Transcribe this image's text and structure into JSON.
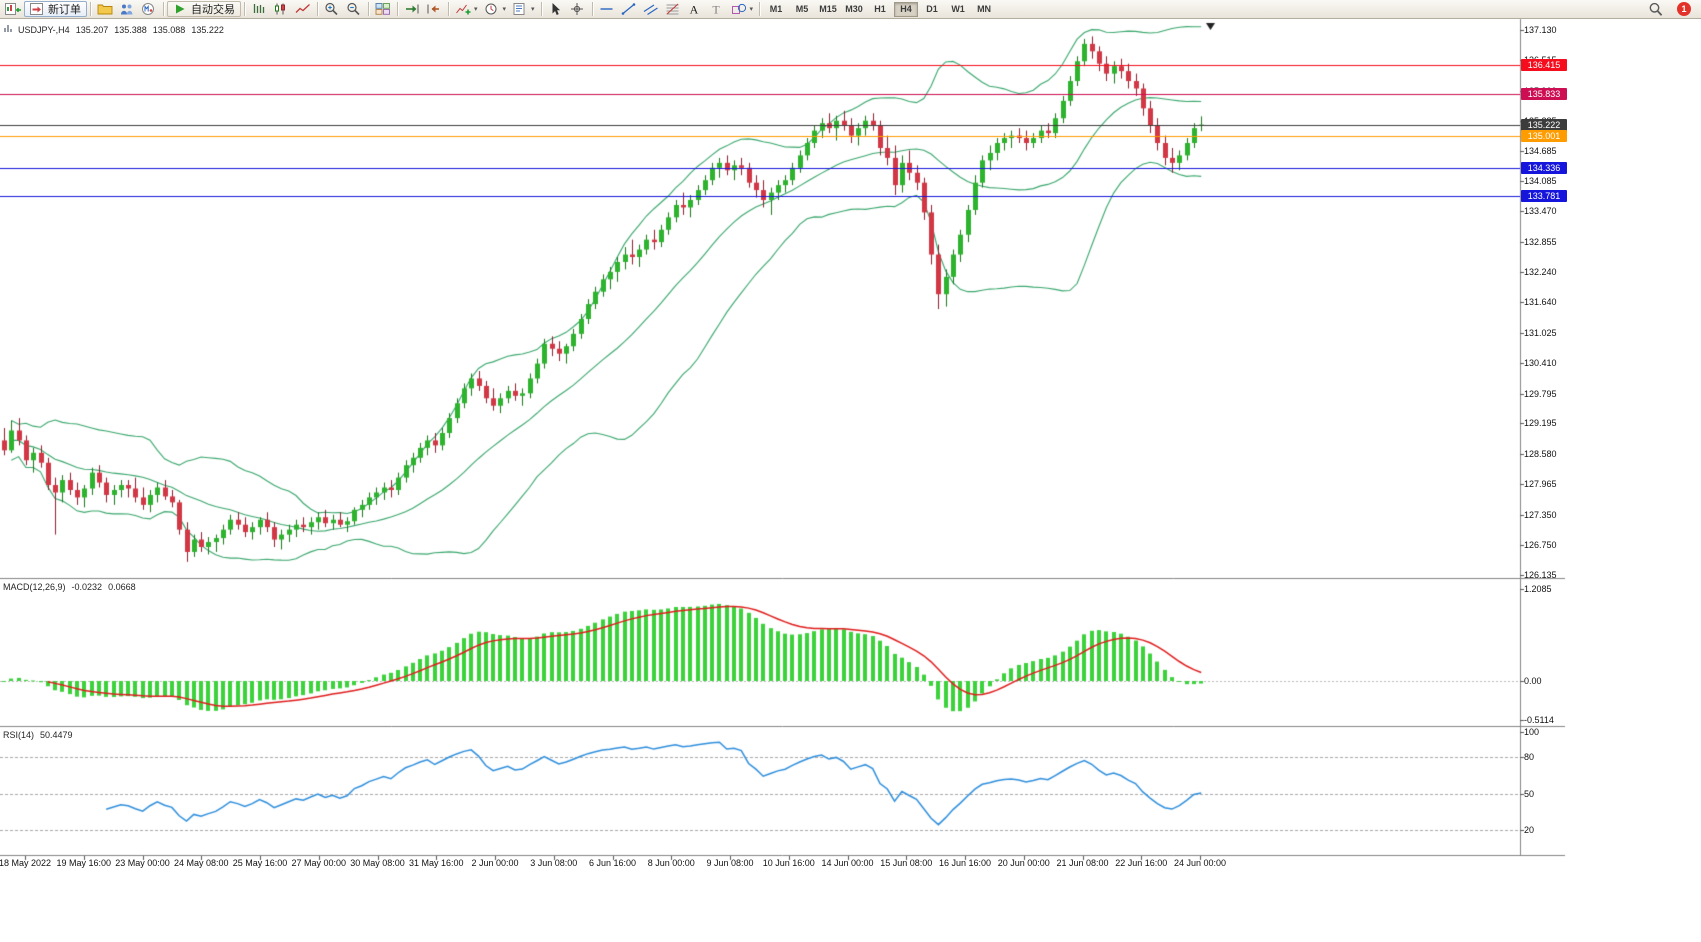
{
  "toolbar": {
    "buttons": [
      {
        "name": "new-chart-button",
        "icon": "new-chart-icon"
      },
      {
        "name": "new-order-button",
        "icon": "new-order-icon",
        "label": "新订单"
      },
      {
        "divider": true
      },
      {
        "name": "profiles-button",
        "icon": "profiles-icon"
      },
      {
        "name": "community-button",
        "icon": "community-icon"
      },
      {
        "name": "mql5-button",
        "icon": "mql5-icon"
      },
      {
        "divider": true
      },
      {
        "name": "autotrading-button",
        "icon": "autotrading-icon",
        "label": "自动交易"
      },
      {
        "divider": true
      },
      {
        "name": "bars-button",
        "icon": "bars-icon"
      },
      {
        "name": "candlesticks-button",
        "icon": "candles-icon"
      },
      {
        "name": "line-chart-button",
        "icon": "line-icon"
      },
      {
        "divider": true
      },
      {
        "name": "zoom-in-button",
        "icon": "zoom-in-icon"
      },
      {
        "name": "zoom-out-button",
        "icon": "zoom-out-icon"
      },
      {
        "divider": true
      },
      {
        "name": "tile-windows-button",
        "icon": "tile-icon"
      },
      {
        "divider": true
      },
      {
        "name": "auto-scroll-button",
        "icon": "autoscroll-icon"
      },
      {
        "name": "chart-shift-button",
        "icon": "shift-icon"
      },
      {
        "divider": true
      },
      {
        "name": "indicators-button",
        "icon": "indicators-icon",
        "dropdown": true
      },
      {
        "name": "periods-button",
        "icon": "periods-icon",
        "dropdown": true
      },
      {
        "name": "templates-button",
        "icon": "templates-icon",
        "dropdown": true
      },
      {
        "divider": true
      },
      {
        "name": "cursor-button",
        "icon": "cursor-icon"
      },
      {
        "name": "crosshair-button",
        "icon": "crosshair-icon"
      },
      {
        "divider": true
      },
      {
        "name": "horizontal-line-button",
        "icon": "hline-icon"
      },
      {
        "name": "trendline-button",
        "icon": "trendline-icon"
      },
      {
        "name": "channel-button",
        "icon": "channel-icon"
      },
      {
        "name": "fibonacci-button",
        "icon": "fibo-icon"
      },
      {
        "name": "text-button",
        "icon": "text-icon"
      },
      {
        "name": "text-label-button",
        "icon": "label-icon"
      },
      {
        "name": "shapes-button",
        "icon": "shapes-icon",
        "dropdown": true
      },
      {
        "divider": true
      }
    ],
    "timeframes": [
      "M1",
      "M5",
      "M15",
      "M30",
      "H1",
      "H4",
      "D1",
      "W1",
      "MN"
    ],
    "active_timeframe": "H4",
    "notification_count": "1"
  },
  "chart": {
    "symbol": "USDJPY-,H4",
    "open": "135.207",
    "high": "135.388",
    "low": "135.088",
    "close": "135.222",
    "macd_label": "MACD(12,26,9)",
    "macd_value": "-0.0232",
    "macd_signal_value": "0.0668",
    "rsi_label": "RSI(14)",
    "rsi_value": "50.4479"
  },
  "chart_data": {
    "type": "candlestick",
    "symbol": "USDJPY",
    "timeframe": "H4",
    "price_axis": {
      "min": 126.135,
      "max": 137.13,
      "labels": [
        "137.130",
        "136.515",
        "135.900",
        "135.285",
        "134.685",
        "134.085",
        "133.470",
        "132.855",
        "132.240",
        "131.640",
        "131.025",
        "130.410",
        "129.795",
        "129.195",
        "128.580",
        "127.965",
        "127.350",
        "126.750",
        "126.135"
      ]
    },
    "time_labels": [
      "18 May 2022",
      "19 May 16:00",
      "23 May 00:00",
      "24 May 08:00",
      "25 May 16:00",
      "27 May 00:00",
      "30 May 08:00",
      "31 May 16:00",
      "2 Jun 00:00",
      "3 Jun 08:00",
      "6 Jun 16:00",
      "8 Jun 00:00",
      "9 Jun 08:00",
      "10 Jun 16:00",
      "14 Jun 00:00",
      "15 Jun 08:00",
      "16 Jun 16:00",
      "20 Jun 00:00",
      "21 Jun 08:00",
      "22 Jun 16:00",
      "24 Jun 00:00"
    ],
    "hlines": [
      {
        "price": 136.415,
        "label": "136.415",
        "color": "#f50d1e"
      },
      {
        "price": 135.833,
        "label": "135.833",
        "color": "#cd0e52"
      },
      {
        "price": 135.222,
        "label": "135.222",
        "color": "#3c3c3c"
      },
      {
        "price": 135.001,
        "label": "135.001",
        "color": "#ff9c00"
      },
      {
        "price": 134.336,
        "label": "134.336",
        "color": "#1515dc"
      },
      {
        "price": 133.781,
        "label": "133.781",
        "color": "#1515dc"
      }
    ],
    "indicators": {
      "bollinger": {
        "period": 20,
        "deviation": 2,
        "color": "#3aa76d"
      },
      "macd": {
        "fast": 12,
        "slow": 26,
        "signal": 9,
        "axis_labels": [
          "1.2085",
          "0.00",
          "-0.5114"
        ],
        "hist_color": "#3cd23c",
        "signal_color": "#e01d1d"
      },
      "rsi": {
        "period": 14,
        "levels": [
          100,
          80,
          50,
          20
        ],
        "color": "#2f8fdd"
      }
    },
    "candles": [
      [
        128.85,
        129.1,
        128.55,
        128.65
      ],
      [
        128.65,
        129.25,
        128.6,
        129.05
      ],
      [
        129.05,
        129.3,
        128.75,
        128.85
      ],
      [
        128.85,
        128.95,
        128.35,
        128.45
      ],
      [
        128.45,
        128.7,
        128.2,
        128.6
      ],
      [
        128.6,
        128.75,
        128.3,
        128.4
      ],
      [
        128.4,
        128.5,
        127.85,
        127.95
      ],
      [
        127.95,
        128.1,
        126.95,
        127.8
      ],
      [
        127.8,
        128.15,
        127.6,
        128.05
      ],
      [
        128.05,
        128.2,
        127.75,
        127.85
      ],
      [
        127.85,
        128.0,
        127.55,
        127.7
      ],
      [
        127.7,
        127.95,
        127.5,
        127.88
      ],
      [
        127.88,
        128.3,
        127.75,
        128.2
      ],
      [
        128.2,
        128.35,
        127.9,
        128.0
      ],
      [
        128.0,
        128.1,
        127.6,
        127.75
      ],
      [
        127.75,
        127.95,
        127.55,
        127.85
      ],
      [
        127.85,
        128.05,
        127.7,
        127.95
      ],
      [
        127.95,
        128.05,
        127.7,
        127.88
      ],
      [
        127.88,
        128.1,
        127.6,
        127.7
      ],
      [
        127.7,
        127.9,
        127.45,
        127.55
      ],
      [
        127.55,
        127.85,
        127.4,
        127.75
      ],
      [
        127.75,
        128.0,
        127.6,
        127.9
      ],
      [
        127.9,
        128.05,
        127.65,
        127.72
      ],
      [
        127.72,
        127.85,
        127.5,
        127.6
      ],
      [
        127.6,
        127.65,
        126.95,
        127.05
      ],
      [
        127.05,
        127.2,
        126.4,
        126.6
      ],
      [
        126.6,
        126.95,
        126.5,
        126.85
      ],
      [
        126.85,
        127.0,
        126.6,
        126.7
      ],
      [
        126.7,
        126.9,
        126.55,
        126.8
      ],
      [
        126.8,
        126.95,
        126.6,
        126.88
      ],
      [
        126.88,
        127.15,
        126.75,
        127.05
      ],
      [
        127.05,
        127.35,
        126.95,
        127.25
      ],
      [
        127.25,
        127.4,
        127.05,
        127.15
      ],
      [
        127.15,
        127.3,
        126.9,
        127.0
      ],
      [
        127.0,
        127.2,
        126.85,
        127.1
      ],
      [
        127.1,
        127.3,
        126.95,
        127.25
      ],
      [
        127.25,
        127.4,
        127.0,
        127.1
      ],
      [
        127.1,
        127.2,
        126.7,
        126.85
      ],
      [
        126.85,
        127.05,
        126.65,
        126.95
      ],
      [
        126.95,
        127.15,
        126.8,
        127.05
      ],
      [
        127.05,
        127.25,
        126.9,
        127.15
      ],
      [
        127.15,
        127.3,
        127.0,
        127.1
      ],
      [
        127.1,
        127.3,
        126.95,
        127.2
      ],
      [
        127.2,
        127.4,
        127.05,
        127.3
      ],
      [
        127.3,
        127.45,
        127.1,
        127.18
      ],
      [
        127.18,
        127.35,
        127.05,
        127.25
      ],
      [
        127.25,
        127.4,
        127.1,
        127.15
      ],
      [
        127.15,
        127.3,
        127.0,
        127.22
      ],
      [
        127.22,
        127.5,
        127.15,
        127.45
      ],
      [
        127.45,
        127.65,
        127.3,
        127.55
      ],
      [
        127.55,
        127.8,
        127.45,
        127.7
      ],
      [
        127.7,
        127.9,
        127.55,
        127.8
      ],
      [
        127.8,
        128.0,
        127.65,
        127.9
      ],
      [
        127.9,
        128.05,
        127.7,
        127.85
      ],
      [
        127.85,
        128.2,
        127.75,
        128.1
      ],
      [
        128.1,
        128.45,
        128.0,
        128.35
      ],
      [
        128.35,
        128.6,
        128.2,
        128.5
      ],
      [
        128.5,
        128.8,
        128.4,
        128.7
      ],
      [
        128.7,
        128.95,
        128.55,
        128.85
      ],
      [
        128.85,
        129.0,
        128.6,
        128.75
      ],
      [
        128.75,
        129.1,
        128.65,
        129.0
      ],
      [
        129.0,
        129.4,
        128.9,
        129.3
      ],
      [
        129.3,
        129.7,
        129.2,
        129.6
      ],
      [
        129.6,
        130.0,
        129.5,
        129.9
      ],
      [
        129.9,
        130.2,
        129.75,
        130.1
      ],
      [
        130.1,
        130.25,
        129.85,
        129.95
      ],
      [
        129.95,
        130.05,
        129.6,
        129.7
      ],
      [
        129.7,
        129.9,
        129.45,
        129.55
      ],
      [
        129.55,
        129.8,
        129.4,
        129.7
      ],
      [
        129.7,
        129.95,
        129.6,
        129.85
      ],
      [
        129.85,
        130.0,
        129.65,
        129.75
      ],
      [
        129.75,
        129.9,
        129.55,
        129.8
      ],
      [
        129.8,
        130.2,
        129.7,
        130.1
      ],
      [
        130.1,
        130.5,
        130.0,
        130.4
      ],
      [
        130.4,
        130.9,
        130.3,
        130.8
      ],
      [
        130.8,
        130.95,
        130.55,
        130.7
      ],
      [
        130.7,
        130.85,
        130.45,
        130.6
      ],
      [
        130.6,
        130.8,
        130.4,
        130.75
      ],
      [
        130.75,
        131.1,
        130.65,
        131.0
      ],
      [
        131.0,
        131.4,
        130.9,
        131.3
      ],
      [
        131.3,
        131.7,
        131.2,
        131.6
      ],
      [
        131.6,
        131.95,
        131.5,
        131.85
      ],
      [
        131.85,
        132.2,
        131.75,
        132.1
      ],
      [
        132.1,
        132.35,
        131.9,
        132.25
      ],
      [
        132.25,
        132.55,
        132.05,
        132.45
      ],
      [
        132.45,
        132.75,
        132.3,
        132.6
      ],
      [
        132.6,
        132.9,
        132.4,
        132.55
      ],
      [
        132.55,
        132.8,
        132.35,
        132.7
      ],
      [
        132.7,
        133.0,
        132.6,
        132.9
      ],
      [
        132.9,
        133.1,
        132.7,
        132.85
      ],
      [
        132.85,
        133.2,
        132.75,
        133.1
      ],
      [
        133.1,
        133.45,
        133.0,
        133.35
      ],
      [
        133.35,
        133.7,
        133.25,
        133.6
      ],
      [
        133.6,
        133.85,
        133.4,
        133.55
      ],
      [
        133.55,
        133.8,
        133.35,
        133.7
      ],
      [
        133.7,
        134.0,
        133.6,
        133.9
      ],
      [
        133.9,
        134.2,
        133.8,
        134.1
      ],
      [
        134.1,
        134.45,
        134.0,
        134.35
      ],
      [
        134.35,
        134.55,
        134.15,
        134.45
      ],
      [
        134.45,
        134.6,
        134.2,
        134.3
      ],
      [
        134.3,
        134.5,
        134.1,
        134.4
      ],
      [
        134.4,
        134.55,
        134.2,
        134.35
      ],
      [
        134.35,
        134.45,
        133.95,
        134.05
      ],
      [
        134.05,
        134.2,
        133.75,
        133.9
      ],
      [
        133.9,
        134.1,
        133.55,
        133.7
      ],
      [
        133.7,
        133.95,
        133.4,
        133.85
      ],
      [
        133.85,
        134.1,
        133.7,
        134.0
      ],
      [
        134.0,
        134.2,
        133.85,
        134.1
      ],
      [
        134.1,
        134.45,
        134.0,
        134.35
      ],
      [
        134.35,
        134.7,
        134.25,
        134.6
      ],
      [
        134.6,
        134.95,
        134.5,
        134.85
      ],
      [
        134.85,
        135.2,
        134.75,
        135.1
      ],
      [
        135.1,
        135.35,
        134.95,
        135.25
      ],
      [
        135.25,
        135.45,
        135.05,
        135.15
      ],
      [
        135.15,
        135.4,
        134.9,
        135.3
      ],
      [
        135.3,
        135.5,
        135.1,
        135.2
      ],
      [
        135.2,
        135.35,
        134.85,
        135.0
      ],
      [
        135.0,
        135.25,
        134.8,
        135.15
      ],
      [
        135.15,
        135.4,
        135.0,
        135.3
      ],
      [
        135.3,
        135.45,
        135.1,
        135.2
      ],
      [
        135.2,
        135.3,
        134.6,
        134.75
      ],
      [
        134.75,
        135.0,
        134.4,
        134.55
      ],
      [
        134.55,
        134.8,
        133.8,
        134.0
      ],
      [
        134.0,
        134.6,
        133.85,
        134.45
      ],
      [
        134.45,
        134.7,
        134.1,
        134.25
      ],
      [
        134.25,
        134.4,
        133.9,
        134.05
      ],
      [
        134.05,
        134.15,
        133.3,
        133.45
      ],
      [
        133.45,
        133.6,
        132.4,
        132.6
      ],
      [
        132.6,
        132.8,
        131.5,
        131.8
      ],
      [
        131.8,
        132.3,
        131.55,
        132.15
      ],
      [
        132.15,
        132.7,
        132.0,
        132.6
      ],
      [
        132.6,
        133.1,
        132.45,
        133.0
      ],
      [
        133.0,
        133.6,
        132.85,
        133.5
      ],
      [
        133.5,
        134.2,
        133.4,
        134.05
      ],
      [
        134.05,
        134.6,
        133.95,
        134.5
      ],
      [
        134.5,
        134.8,
        134.3,
        134.65
      ],
      [
        134.65,
        134.95,
        134.5,
        134.85
      ],
      [
        134.85,
        135.05,
        134.7,
        134.95
      ],
      [
        134.95,
        135.1,
        134.75,
        135.0
      ],
      [
        135.0,
        135.15,
        134.85,
        134.95
      ],
      [
        134.95,
        135.1,
        134.7,
        134.85
      ],
      [
        134.85,
        135.05,
        134.75,
        134.95
      ],
      [
        134.95,
        135.2,
        134.85,
        135.1
      ],
      [
        135.1,
        135.25,
        134.95,
        135.05
      ],
      [
        135.05,
        135.45,
        134.95,
        135.35
      ],
      [
        135.35,
        135.8,
        135.25,
        135.7
      ],
      [
        135.7,
        136.2,
        135.6,
        136.1
      ],
      [
        136.1,
        136.6,
        136.0,
        136.5
      ],
      [
        136.5,
        136.95,
        136.4,
        136.85
      ],
      [
        136.85,
        137.0,
        136.55,
        136.7
      ],
      [
        136.7,
        136.8,
        136.3,
        136.45
      ],
      [
        136.45,
        136.6,
        136.1,
        136.25
      ],
      [
        136.25,
        136.5,
        136.05,
        136.4
      ],
      [
        136.4,
        136.55,
        136.15,
        136.3
      ],
      [
        136.3,
        136.45,
        135.95,
        136.1
      ],
      [
        136.1,
        136.25,
        135.8,
        135.95
      ],
      [
        135.95,
        136.05,
        135.4,
        135.55
      ],
      [
        135.55,
        135.7,
        135.05,
        135.2
      ],
      [
        135.2,
        135.35,
        134.7,
        134.85
      ],
      [
        134.85,
        135.0,
        134.4,
        134.55
      ],
      [
        134.55,
        134.75,
        134.25,
        134.45
      ],
      [
        134.45,
        134.7,
        134.3,
        134.6
      ],
      [
        134.6,
        134.95,
        134.5,
        134.85
      ],
      [
        134.85,
        135.25,
        134.75,
        135.15
      ],
      [
        135.207,
        135.388,
        135.088,
        135.222
      ]
    ]
  }
}
